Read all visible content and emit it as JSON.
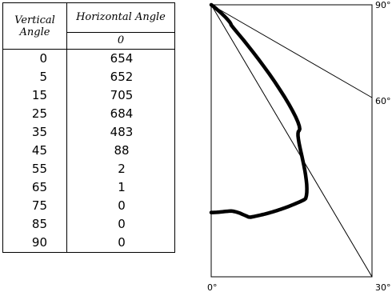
{
  "table": {
    "vertical_header": [
      "Vertical",
      "Angle"
    ],
    "horizontal_header": "Horizontal Angle",
    "horizontal_sub": "0",
    "rows": [
      {
        "v": "0",
        "h": "654"
      },
      {
        "v": "5",
        "h": "652"
      },
      {
        "v": "15",
        "h": "705"
      },
      {
        "v": "25",
        "h": "684"
      },
      {
        "v": "35",
        "h": "483"
      },
      {
        "v": "45",
        "h": "88"
      },
      {
        "v": "55",
        "h": "2"
      },
      {
        "v": "65",
        "h": "1"
      },
      {
        "v": "75",
        "h": "0"
      },
      {
        "v": "85",
        "h": "0"
      },
      {
        "v": "90",
        "h": "0"
      }
    ]
  },
  "chart_data": {
    "type": "line",
    "axis_labels": {
      "bottom_left": "0°",
      "bottom_right": "30°",
      "right_60": "60°",
      "top_right": "90°"
    },
    "series": [
      {
        "x": [
          0,
          5,
          15,
          25,
          35,
          45,
          55,
          65,
          75,
          85,
          90
        ],
        "values": [
          654,
          652,
          705,
          684,
          483,
          88,
          2,
          1,
          0,
          0,
          0
        ]
      }
    ]
  }
}
